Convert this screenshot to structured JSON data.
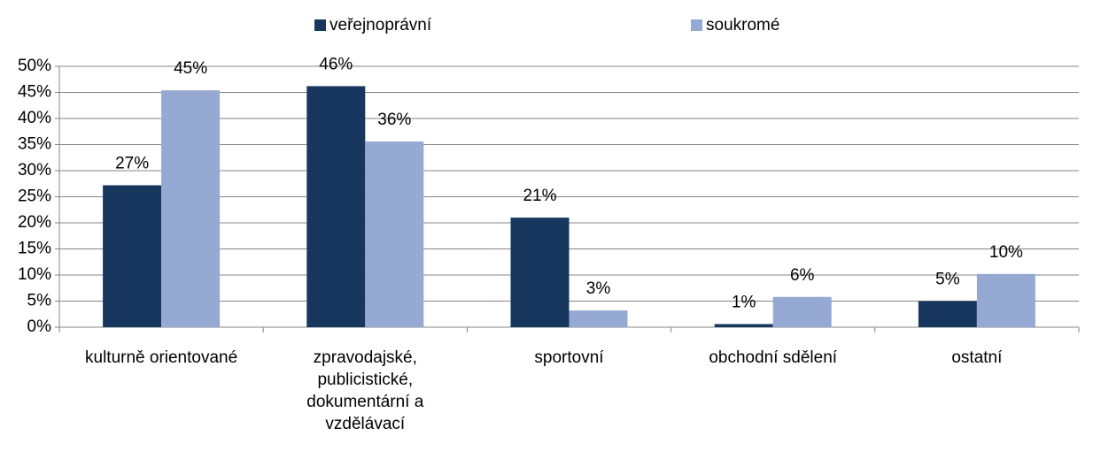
{
  "chart_data": {
    "type": "bar",
    "categories": [
      "kulturně orientované",
      "zpravodajské, publicistické, dokumentární a vzdělávací",
      "sportovní",
      "obchodní sdělení",
      "ostatní"
    ],
    "series": [
      {
        "name": "veřejnoprávní",
        "color": "#17375e",
        "values": [
          27.2,
          46.2,
          21.0,
          0.6,
          5.0
        ],
        "value_labels": [
          "27%",
          "46%",
          "21%",
          "1%",
          "5%"
        ]
      },
      {
        "name": "soukromé",
        "color": "#95a9d3",
        "values": [
          45.4,
          35.6,
          3.2,
          5.8,
          10.2
        ],
        "value_labels": [
          "45%",
          "36%",
          "3%",
          "6%",
          "10%"
        ]
      }
    ],
    "ylim": [
      0,
      50
    ],
    "yticks": [
      {
        "value": 0,
        "label": "0%"
      },
      {
        "value": 5,
        "label": "5%"
      },
      {
        "value": 10,
        "label": "10%"
      },
      {
        "value": 15,
        "label": "15%"
      },
      {
        "value": 20,
        "label": "20%"
      },
      {
        "value": 25,
        "label": "25%"
      },
      {
        "value": 30,
        "label": "30%"
      },
      {
        "value": 35,
        "label": "35%"
      },
      {
        "value": 40,
        "label": "40%"
      },
      {
        "value": 45,
        "label": "45%"
      },
      {
        "value": 50,
        "label": "50%"
      }
    ],
    "grid": true,
    "legend": "top"
  }
}
